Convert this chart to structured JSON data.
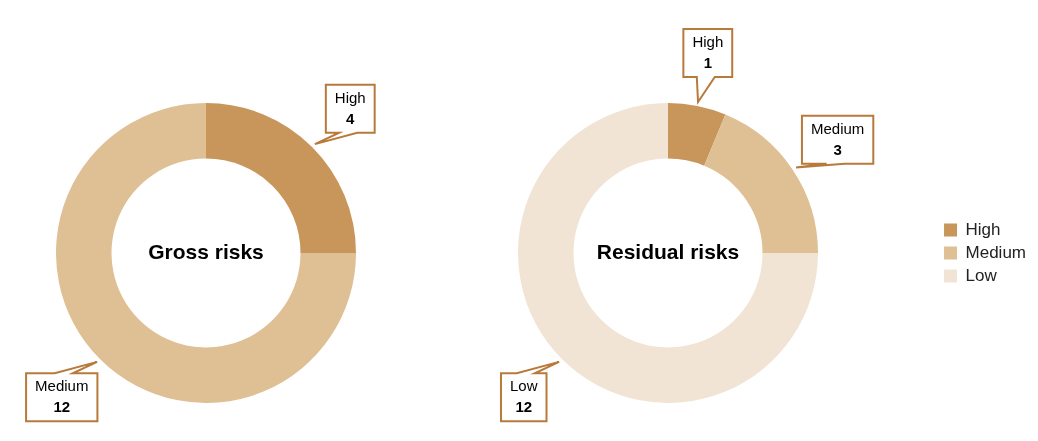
{
  "chart_data": [
    {
      "type": "donut",
      "title": "Gross risks",
      "categories": [
        "High",
        "Medium"
      ],
      "values": [
        4,
        12
      ],
      "colors": [
        "#c8955a",
        "#dfbf94"
      ],
      "data_labels": true,
      "legend": false
    },
    {
      "type": "donut",
      "title": "Residual risks",
      "categories": [
        "High",
        "Medium",
        "Low"
      ],
      "values": [
        1,
        3,
        12
      ],
      "colors": [
        "#c8955a",
        "#dfbf94",
        "#f1e4d4"
      ],
      "data_labels": true,
      "legend": "right"
    }
  ]
}
